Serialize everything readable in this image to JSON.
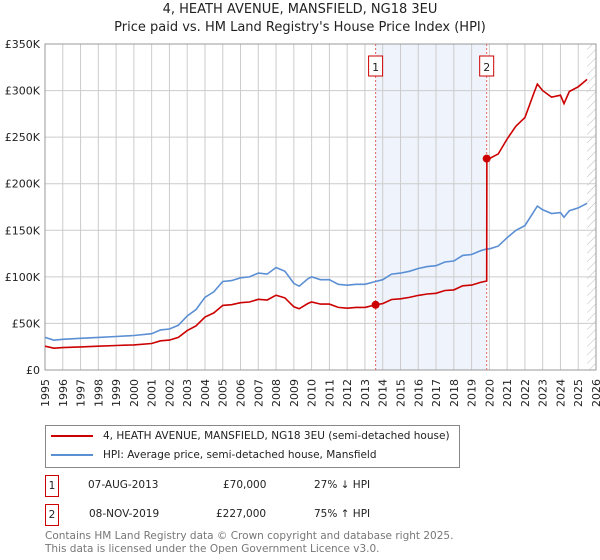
{
  "title_line1": "4, HEATH AVENUE, MANSFIELD, NG18 3EU",
  "title_line2": "Price paid vs. HM Land Registry's House Price Index (HPI)",
  "colors": {
    "property": "#cc0000",
    "hpi": "#5b8fd4",
    "shade": "#eef3fc",
    "grid": "#cccccc"
  },
  "chart_data": {
    "type": "line",
    "ylim": [
      0,
      350000
    ],
    "xlim": [
      1995,
      2026
    ],
    "yticks": [
      {
        "v": 0,
        "label": "£0"
      },
      {
        "v": 50000,
        "label": "£50K"
      },
      {
        "v": 100000,
        "label": "£100K"
      },
      {
        "v": 150000,
        "label": "£150K"
      },
      {
        "v": 200000,
        "label": "£200K"
      },
      {
        "v": 250000,
        "label": "£250K"
      },
      {
        "v": 300000,
        "label": "£300K"
      },
      {
        "v": 350000,
        "label": "£350K"
      }
    ],
    "xticks": [
      "1995",
      "1996",
      "1997",
      "1998",
      "1999",
      "2000",
      "2001",
      "2002",
      "2003",
      "2004",
      "2005",
      "2006",
      "2007",
      "2008",
      "2009",
      "2010",
      "2011",
      "2012",
      "2013",
      "2014",
      "2015",
      "2016",
      "2017",
      "2018",
      "2019",
      "2020",
      "2021",
      "2022",
      "2023",
      "2024",
      "2025",
      "2026"
    ],
    "grid": true,
    "series": [
      {
        "name": "HPI: Average price, semi-detached house, Mansfield",
        "x": [
          1995,
          1995.5,
          1996,
          1997,
          1998,
          1999,
          2000,
          2001,
          2001.5,
          2002,
          2002.5,
          2003,
          2003.5,
          2004,
          2004.5,
          2005,
          2005.5,
          2006,
          2006.5,
          2007,
          2007.5,
          2008,
          2008.5,
          2009,
          2009.3,
          2009.8,
          2010,
          2010.5,
          2011,
          2011.5,
          2012,
          2012.5,
          2013,
          2013.6,
          2014,
          2014.5,
          2015,
          2015.5,
          2016,
          2016.5,
          2017,
          2017.5,
          2018,
          2018.5,
          2019,
          2019.5,
          2019.85,
          2020,
          2020.5,
          2021,
          2021.5,
          2022,
          2022.5,
          2022.7,
          2023,
          2023.5,
          2024,
          2024.2,
          2024.5,
          2025,
          2025.5
        ],
        "values": [
          35,
          32,
          33,
          34,
          35,
          36,
          37,
          39,
          43,
          44,
          48,
          58,
          65,
          78,
          84,
          95,
          96,
          99,
          100,
          104,
          103,
          110,
          106,
          93,
          90,
          98,
          100,
          97,
          97,
          92,
          91,
          92,
          92,
          95,
          97,
          103,
          104,
          106,
          109,
          111,
          112,
          116,
          117,
          123,
          124,
          128,
          130,
          130,
          133,
          142,
          150,
          155,
          170,
          176,
          172,
          168,
          169,
          164,
          171,
          174,
          179
        ],
        "unit": 1000
      },
      {
        "name": "4, HEATH AVENUE, MANSFIELD, NG18 3EU (semi-detached house)",
        "x": [
          1995,
          1995.5,
          1996,
          1997,
          1998,
          1999,
          2000,
          2001,
          2001.5,
          2002,
          2002.5,
          2003,
          2003.5,
          2004,
          2004.5,
          2005,
          2005.5,
          2006,
          2006.5,
          2007,
          2007.5,
          2008,
          2008.5,
          2009,
          2009.3,
          2009.8,
          2010,
          2010.5,
          2011,
          2011.5,
          2012,
          2012.5,
          2013,
          2013.6,
          2014,
          2014.5,
          2015,
          2015.5,
          2016,
          2016.5,
          2017,
          2017.5,
          2018,
          2018.5,
          2019,
          2019.5,
          2019.85,
          2019.86,
          2020,
          2020.5,
          2021,
          2021.5,
          2022,
          2022.5,
          2022.7,
          2023,
          2023.5,
          2024,
          2024.2,
          2024.5,
          2025,
          2025.5
        ],
        "values": [
          25.6,
          23.4,
          24.1,
          24.8,
          25.6,
          26.3,
          27,
          28.5,
          31.4,
          32.1,
          35,
          42.3,
          47.5,
          56.9,
          61.3,
          69.4,
          70.1,
          72.3,
          73,
          75.9,
          75.2,
          80.3,
          77.4,
          67.9,
          65.7,
          71.5,
          73,
          70.8,
          70.8,
          67.2,
          66.4,
          67.2,
          67.2,
          70,
          71.3,
          75.7,
          76.4,
          77.9,
          80.1,
          81.6,
          82.3,
          85.3,
          86,
          90.4,
          91.1,
          94.1,
          95.5,
          227,
          227,
          232,
          248,
          262,
          271,
          297,
          307,
          300,
          293,
          295,
          286,
          299,
          304,
          312
        ],
        "unit": 1000
      }
    ],
    "shaded_range": [
      2013.6,
      2019.85
    ],
    "hatched_from": 2025.5,
    "sales": [
      {
        "num": "1",
        "x": 2013.6,
        "value": 70000
      },
      {
        "num": "2",
        "x": 2019.85,
        "value": 227000
      }
    ]
  },
  "legend": {
    "property": "4, HEATH AVENUE, MANSFIELD, NG18 3EU (semi-detached house)",
    "hpi": "HPI: Average price, semi-detached house, Mansfield"
  },
  "transactions": [
    {
      "num": "1",
      "date": "07-AUG-2013",
      "price": "£70,000",
      "hpi": "27% ↓ HPI"
    },
    {
      "num": "2",
      "date": "08-NOV-2019",
      "price": "£227,000",
      "hpi": "75% ↑ HPI"
    }
  ],
  "footer": {
    "line1": "Contains HM Land Registry data © Crown copyright and database right 2025.",
    "line2": "This data is licensed under the Open Government Licence v3.0."
  }
}
